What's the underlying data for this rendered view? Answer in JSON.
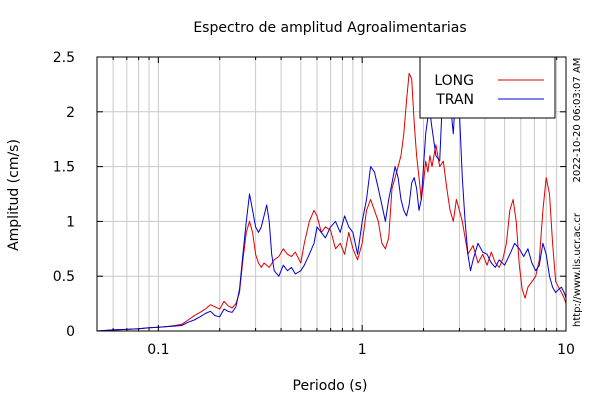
{
  "chart_data": {
    "type": "line",
    "title": "Espectro de amplitud Agroalimentarias",
    "xlabel": "Periodo (s)",
    "ylabel": "Amplitud (cm/s)",
    "x_scale": "log",
    "xlim": [
      0.05,
      10
    ],
    "ylim": [
      0,
      2.5
    ],
    "x_ticks": [
      0.1,
      1,
      10
    ],
    "x_tick_labels": [
      "0.1",
      "1",
      "10"
    ],
    "y_ticks": [
      0,
      0.5,
      1,
      1.5,
      2,
      2.5
    ],
    "y_tick_labels": [
      "0",
      "0.5",
      "1",
      "1.5",
      "2",
      "2.5"
    ],
    "grid": true,
    "legend_position": "top-right",
    "side_labels": {
      "timestamp": "2022-10-20 06:03:07 AM",
      "url": "http://www.lis.ucr.ac.cr"
    },
    "series": [
      {
        "name": "LONG",
        "color": "#e00000",
        "points": [
          [
            0.05,
            0.0
          ],
          [
            0.06,
            0.01
          ],
          [
            0.07,
            0.015
          ],
          [
            0.08,
            0.02
          ],
          [
            0.09,
            0.03
          ],
          [
            0.1,
            0.035
          ],
          [
            0.11,
            0.04
          ],
          [
            0.12,
            0.05
          ],
          [
            0.13,
            0.06
          ],
          [
            0.14,
            0.1
          ],
          [
            0.15,
            0.14
          ],
          [
            0.16,
            0.17
          ],
          [
            0.17,
            0.2
          ],
          [
            0.18,
            0.24
          ],
          [
            0.19,
            0.22
          ],
          [
            0.2,
            0.2
          ],
          [
            0.21,
            0.27
          ],
          [
            0.22,
            0.23
          ],
          [
            0.23,
            0.21
          ],
          [
            0.24,
            0.25
          ],
          [
            0.25,
            0.35
          ],
          [
            0.26,
            0.65
          ],
          [
            0.27,
            0.9
          ],
          [
            0.28,
            1.0
          ],
          [
            0.29,
            0.9
          ],
          [
            0.3,
            0.7
          ],
          [
            0.31,
            0.62
          ],
          [
            0.32,
            0.58
          ],
          [
            0.33,
            0.62
          ],
          [
            0.35,
            0.58
          ],
          [
            0.37,
            0.65
          ],
          [
            0.39,
            0.68
          ],
          [
            0.41,
            0.75
          ],
          [
            0.43,
            0.7
          ],
          [
            0.45,
            0.68
          ],
          [
            0.47,
            0.72
          ],
          [
            0.5,
            0.62
          ],
          [
            0.52,
            0.8
          ],
          [
            0.55,
            1.0
          ],
          [
            0.58,
            1.1
          ],
          [
            0.6,
            1.05
          ],
          [
            0.63,
            0.9
          ],
          [
            0.66,
            0.95
          ],
          [
            0.7,
            0.92
          ],
          [
            0.74,
            0.75
          ],
          [
            0.78,
            0.8
          ],
          [
            0.82,
            0.7
          ],
          [
            0.86,
            0.9
          ],
          [
            0.9,
            0.75
          ],
          [
            0.95,
            0.65
          ],
          [
            1.0,
            0.8
          ],
          [
            1.05,
            1.1
          ],
          [
            1.1,
            1.2
          ],
          [
            1.15,
            1.1
          ],
          [
            1.2,
            1.0
          ],
          [
            1.25,
            0.8
          ],
          [
            1.3,
            0.75
          ],
          [
            1.35,
            0.85
          ],
          [
            1.4,
            1.3
          ],
          [
            1.45,
            1.4
          ],
          [
            1.5,
            1.5
          ],
          [
            1.55,
            1.6
          ],
          [
            1.6,
            1.8
          ],
          [
            1.65,
            2.1
          ],
          [
            1.7,
            2.35
          ],
          [
            1.75,
            2.3
          ],
          [
            1.8,
            1.9
          ],
          [
            1.85,
            1.6
          ],
          [
            1.9,
            1.4
          ],
          [
            1.95,
            1.2
          ],
          [
            2.0,
            1.35
          ],
          [
            2.05,
            1.55
          ],
          [
            2.1,
            1.45
          ],
          [
            2.15,
            1.6
          ],
          [
            2.2,
            1.5
          ],
          [
            2.3,
            1.7
          ],
          [
            2.4,
            1.5
          ],
          [
            2.5,
            1.55
          ],
          [
            2.6,
            1.3
          ],
          [
            2.7,
            1.1
          ],
          [
            2.8,
            1.0
          ],
          [
            2.9,
            1.2
          ],
          [
            3.0,
            1.1
          ],
          [
            3.1,
            1.0
          ],
          [
            3.2,
            0.85
          ],
          [
            3.3,
            0.7
          ],
          [
            3.5,
            0.78
          ],
          [
            3.7,
            0.62
          ],
          [
            3.9,
            0.7
          ],
          [
            4.1,
            0.6
          ],
          [
            4.3,
            0.72
          ],
          [
            4.5,
            0.62
          ],
          [
            4.7,
            0.58
          ],
          [
            4.9,
            0.66
          ],
          [
            5.1,
            0.8
          ],
          [
            5.3,
            1.1
          ],
          [
            5.5,
            1.2
          ],
          [
            5.7,
            1.0
          ],
          [
            5.9,
            0.6
          ],
          [
            6.1,
            0.38
          ],
          [
            6.3,
            0.3
          ],
          [
            6.5,
            0.4
          ],
          [
            6.8,
            0.45
          ],
          [
            7.1,
            0.5
          ],
          [
            7.4,
            0.65
          ],
          [
            7.7,
            1.1
          ],
          [
            8.0,
            1.4
          ],
          [
            8.3,
            1.25
          ],
          [
            8.6,
            0.8
          ],
          [
            8.9,
            0.45
          ],
          [
            9.2,
            0.4
          ],
          [
            9.5,
            0.35
          ],
          [
            9.8,
            0.3
          ],
          [
            10.0,
            0.25
          ]
        ]
      },
      {
        "name": "TRAN",
        "color": "#0000d0",
        "points": [
          [
            0.05,
            0.0
          ],
          [
            0.06,
            0.01
          ],
          [
            0.07,
            0.015
          ],
          [
            0.08,
            0.02
          ],
          [
            0.09,
            0.03
          ],
          [
            0.1,
            0.035
          ],
          [
            0.11,
            0.04
          ],
          [
            0.12,
            0.045
          ],
          [
            0.13,
            0.05
          ],
          [
            0.14,
            0.08
          ],
          [
            0.15,
            0.1
          ],
          [
            0.16,
            0.13
          ],
          [
            0.17,
            0.16
          ],
          [
            0.18,
            0.18
          ],
          [
            0.19,
            0.14
          ],
          [
            0.2,
            0.13
          ],
          [
            0.21,
            0.2
          ],
          [
            0.22,
            0.18
          ],
          [
            0.23,
            0.17
          ],
          [
            0.24,
            0.22
          ],
          [
            0.25,
            0.38
          ],
          [
            0.26,
            0.7
          ],
          [
            0.27,
            1.0
          ],
          [
            0.28,
            1.25
          ],
          [
            0.29,
            1.1
          ],
          [
            0.3,
            0.95
          ],
          [
            0.31,
            0.9
          ],
          [
            0.32,
            0.95
          ],
          [
            0.33,
            1.05
          ],
          [
            0.34,
            1.15
          ],
          [
            0.35,
            1.0
          ],
          [
            0.36,
            0.7
          ],
          [
            0.37,
            0.55
          ],
          [
            0.39,
            0.5
          ],
          [
            0.41,
            0.6
          ],
          [
            0.43,
            0.55
          ],
          [
            0.45,
            0.58
          ],
          [
            0.47,
            0.52
          ],
          [
            0.5,
            0.55
          ],
          [
            0.52,
            0.6
          ],
          [
            0.55,
            0.7
          ],
          [
            0.58,
            0.8
          ],
          [
            0.6,
            0.95
          ],
          [
            0.63,
            0.9
          ],
          [
            0.66,
            0.85
          ],
          [
            0.7,
            0.95
          ],
          [
            0.74,
            1.0
          ],
          [
            0.78,
            0.9
          ],
          [
            0.82,
            1.05
          ],
          [
            0.86,
            0.95
          ],
          [
            0.9,
            0.9
          ],
          [
            0.95,
            0.7
          ],
          [
            1.0,
            1.0
          ],
          [
            1.05,
            1.2
          ],
          [
            1.1,
            1.5
          ],
          [
            1.15,
            1.45
          ],
          [
            1.2,
            1.3
          ],
          [
            1.25,
            1.15
          ],
          [
            1.3,
            1.0
          ],
          [
            1.35,
            1.2
          ],
          [
            1.4,
            1.35
          ],
          [
            1.45,
            1.5
          ],
          [
            1.5,
            1.4
          ],
          [
            1.55,
            1.2
          ],
          [
            1.6,
            1.1
          ],
          [
            1.65,
            1.05
          ],
          [
            1.7,
            1.15
          ],
          [
            1.75,
            1.35
          ],
          [
            1.8,
            1.4
          ],
          [
            1.85,
            1.3
          ],
          [
            1.9,
            1.1
          ],
          [
            1.95,
            1.2
          ],
          [
            2.0,
            1.5
          ],
          [
            2.05,
            1.8
          ],
          [
            2.1,
            1.95
          ],
          [
            2.15,
            2.0
          ],
          [
            2.2,
            1.85
          ],
          [
            2.3,
            1.6
          ],
          [
            2.4,
            1.55
          ],
          [
            2.5,
            2.3
          ],
          [
            2.6,
            2.45
          ],
          [
            2.7,
            2.1
          ],
          [
            2.8,
            1.8
          ],
          [
            2.9,
            2.3
          ],
          [
            3.0,
            2.0
          ],
          [
            3.1,
            1.4
          ],
          [
            3.2,
            1.0
          ],
          [
            3.3,
            0.7
          ],
          [
            3.4,
            0.55
          ],
          [
            3.5,
            0.65
          ],
          [
            3.7,
            0.8
          ],
          [
            3.9,
            0.72
          ],
          [
            4.1,
            0.7
          ],
          [
            4.3,
            0.62
          ],
          [
            4.5,
            0.58
          ],
          [
            4.7,
            0.65
          ],
          [
            5.0,
            0.6
          ],
          [
            5.3,
            0.7
          ],
          [
            5.6,
            0.8
          ],
          [
            5.9,
            0.75
          ],
          [
            6.2,
            0.68
          ],
          [
            6.5,
            0.75
          ],
          [
            6.8,
            0.62
          ],
          [
            7.1,
            0.55
          ],
          [
            7.4,
            0.6
          ],
          [
            7.7,
            0.8
          ],
          [
            8.0,
            0.7
          ],
          [
            8.3,
            0.5
          ],
          [
            8.6,
            0.4
          ],
          [
            8.9,
            0.35
          ],
          [
            9.2,
            0.38
          ],
          [
            9.5,
            0.4
          ],
          [
            9.8,
            0.35
          ],
          [
            10.0,
            0.3
          ]
        ]
      }
    ]
  }
}
